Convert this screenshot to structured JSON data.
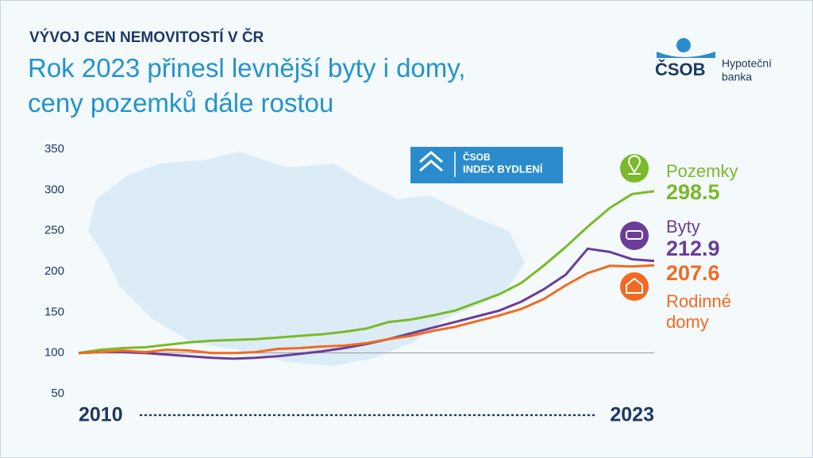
{
  "header": {
    "kicker": "VÝVOJ CEN NEMOVITOSTÍ V ČR",
    "title_lines": [
      "Rok 2023 přinesl levnější byty i domy,",
      "ceny pozemků dále rostou"
    ]
  },
  "logo": {
    "brand": "ČSOB",
    "line1": "Hypoteční",
    "line2": "banka"
  },
  "badge": {
    "brand": "ČSOB",
    "name": "INDEX BYDLENÍ"
  },
  "chart_data": {
    "type": "line",
    "x": [
      2010,
      2010.5,
      2011,
      2011.5,
      2012,
      2012.5,
      2013,
      2013.5,
      2014,
      2014.5,
      2015,
      2015.5,
      2016,
      2016.5,
      2017,
      2017.5,
      2018,
      2018.5,
      2019,
      2019.5,
      2020,
      2020.5,
      2021,
      2021.5,
      2022,
      2022.5,
      2023
    ],
    "xlim": [
      2010,
      2023
    ],
    "xticks": [
      2010,
      2023
    ],
    "ylim": [
      50,
      350
    ],
    "yticks": [
      50,
      100,
      150,
      200,
      250,
      300,
      350
    ],
    "baseline": 100,
    "series": [
      {
        "name": "Pozemky",
        "color": "#7ab929",
        "values": [
          100,
          104,
          106,
          107,
          110,
          113,
          115,
          116,
          117,
          119,
          121,
          123,
          126,
          130,
          138,
          141,
          146,
          152,
          162,
          172,
          186,
          207,
          230,
          255,
          278,
          295,
          298.5
        ]
      },
      {
        "name": "Byty",
        "color": "#6a3d9a",
        "values": [
          100,
          101,
          101,
          100,
          98,
          96,
          94,
          93,
          94,
          96,
          99,
          102,
          106,
          111,
          117,
          124,
          131,
          138,
          145,
          152,
          163,
          178,
          196,
          228,
          224,
          215,
          212.9
        ]
      },
      {
        "name": "Rodinné domy",
        "color": "#f26a21",
        "values": [
          100,
          101,
          103,
          101,
          104,
          103,
          100,
          100,
          101,
          105,
          106,
          108,
          109,
          112,
          117,
          121,
          127,
          132,
          139,
          146,
          154,
          166,
          183,
          198,
          207,
          206,
          207.6
        ]
      }
    ]
  }
}
